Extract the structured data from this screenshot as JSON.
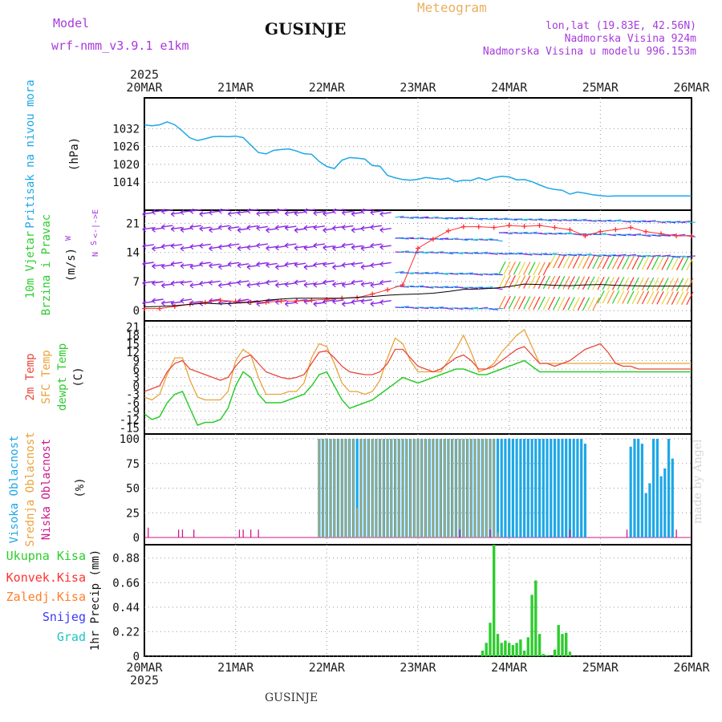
{
  "header": {
    "model_label": "Model",
    "model_name": "wrf-nmm_v3.9.1 e1km",
    "station": "GUSINJE",
    "product": "Meteogram",
    "lonlat": "lon,lat (19.83E, 42.56N)",
    "altitude": "Nadmorska Visina 924m",
    "model_altitude": "Nadmorska Visina u modelu 996.153m"
  },
  "footer": {
    "station": "GUSINJE",
    "credit": "made by Angel"
  },
  "time_axis": {
    "year_top": "2025",
    "year_bottom": "2025",
    "ticks": [
      "20MAR",
      "21MAR",
      "22MAR",
      "23MAR",
      "24MAR",
      "25MAR",
      "26MAR"
    ]
  },
  "colors": {
    "pressure": "#1ea7e6",
    "wind_speed": "#000000",
    "gust": "#ff3030",
    "temp_2m": "#e8473a",
    "temp_sfc": "#e8a33a",
    "dewpoint": "#2ecc2e",
    "cloud_high": "#1ea7e6",
    "cloud_mid": "#e8a33a",
    "cloud_low": "#cc1a8a",
    "precip_total": "#2ecc2e",
    "precip_conv": "#ff3030",
    "precip_frz": "#ff7f2a",
    "snow": "#3a3aff",
    "graupel": "#20c4c4",
    "grid": "#999999"
  },
  "chart_data": [
    {
      "type": "line",
      "panel": "pressure",
      "ylabel_lines": [
        "Pritisak na nivou mora"
      ],
      "unit": "(hPa)",
      "y_ticks": [
        "1032",
        "1026",
        "1020",
        "1014"
      ],
      "ylim": [
        1009.2,
        1034.8
      ],
      "x": [
        0,
        2,
        4,
        6,
        8,
        10,
        12,
        14,
        16,
        18,
        20,
        22,
        24,
        26,
        28,
        30,
        32,
        34,
        36,
        38,
        40,
        42,
        44,
        46,
        48,
        50,
        52,
        54,
        56,
        58,
        60,
        62,
        64,
        66,
        68,
        70,
        72,
        74,
        76,
        78,
        80,
        82,
        84,
        86,
        88,
        90,
        92,
        94,
        96,
        98,
        100,
        102,
        104,
        106,
        108,
        110,
        112,
        114,
        116,
        118,
        120,
        122,
        124,
        126,
        128,
        130,
        132,
        134,
        136,
        138,
        140,
        142,
        144
      ],
      "series": [
        {
          "values": [
            1033.3,
            1033.0,
            1033.3,
            1034.3,
            1033.3,
            1031.2,
            1028.9,
            1028.0,
            1028.6,
            1029.3,
            1029.4,
            1029.3,
            1029.5,
            1029.0,
            1026.5,
            1024.0,
            1023.5,
            1024.7,
            1025.0,
            1025.2,
            1024.5,
            1023.6,
            1023.4,
            1021.0,
            1019.3,
            1018.6,
            1021.4,
            1022.3,
            1022.1,
            1021.8,
            1019.6,
            1019.4,
            1016.3,
            1015.5,
            1014.9,
            1014.7,
            1015.0,
            1015.6,
            1015.3,
            1015.0,
            1015.4,
            1014.2,
            1014.7,
            1014.6,
            1015.5,
            1014.7,
            1015.6,
            1016.0,
            1015.8,
            1014.8,
            1014.9,
            1014.2,
            1013.1,
            1012.1,
            1011.6,
            1011.3,
            1010.0,
            1010.7,
            1010.3,
            1009.8,
            1009.5,
            1009.3,
            1009.4,
            1009.4,
            1009.4,
            1009.4,
            1009.4,
            1009.4,
            1009.4,
            1009.4,
            1009.4,
            1009.4,
            1009.4
          ]
        }
      ]
    },
    {
      "type": "line",
      "panel": "wind",
      "ylabel_lines": [
        "10m Vjetar",
        "Brzina i Pravac"
      ],
      "unit": "(m/s)",
      "direction_legend": [
        "N",
        "<-|->",
        "E",
        "W",
        "S"
      ],
      "y_ticks": [
        "21",
        "14",
        "7",
        "0"
      ],
      "ylim": [
        -1.7,
        23.6
      ],
      "x": [
        0,
        4,
        8,
        12,
        16,
        20,
        24,
        28,
        32,
        36,
        40,
        44,
        48,
        52,
        56,
        60,
        64,
        68,
        72,
        76,
        80,
        84,
        88,
        92,
        96,
        100,
        104,
        108,
        112,
        116,
        120,
        124,
        128,
        132,
        136,
        140,
        144
      ],
      "series": [
        {
          "values": [
            0.9,
            1.0,
            1.2,
            1.5,
            1.8,
            1.6,
            1.8,
            2.0,
            2.5,
            2.8,
            3.0,
            3.0,
            3.0,
            3.0,
            3.2,
            3.4,
            3.7,
            3.9,
            4.0,
            4.2,
            4.6,
            5.1,
            5.2,
            5.4,
            5.8,
            6.4,
            6.3,
            6.1,
            6.0,
            6.2,
            6.3,
            6.1,
            6.0,
            5.9,
            5.9,
            5.9,
            5.9
          ]
        },
        {
          "values": [
            0.5,
            0.5,
            1.0,
            1.5,
            2.0,
            2.5,
            2.2,
            2.0,
            2.0,
            2.3,
            2.3,
            2.5,
            2.7,
            3.0,
            3.1,
            4.0,
            5.0,
            6.2,
            15.0,
            17.2,
            19.2,
            20.2,
            20.2,
            20.0,
            20.5,
            20.3,
            20.5,
            20.0,
            19.5,
            18.0,
            19.0,
            19.5,
            20.0,
            19.0,
            18.5,
            18.0,
            18.0
          ]
        }
      ]
    },
    {
      "type": "line",
      "panel": "temperature",
      "ylabel_lines": [
        "2m Temp",
        "SFC Temp",
        "dewpt Temp"
      ],
      "unit": "(C)",
      "y_ticks": [
        "21",
        "18",
        "15",
        "12",
        "9",
        "6",
        "3",
        "0",
        "-3",
        "-6",
        "-9",
        "-12",
        "-15"
      ],
      "ylim": [
        -16,
        22
      ],
      "x": [
        0,
        2,
        4,
        6,
        8,
        10,
        12,
        14,
        16,
        18,
        20,
        22,
        24,
        26,
        28,
        30,
        32,
        34,
        36,
        38,
        40,
        42,
        44,
        46,
        48,
        50,
        52,
        54,
        56,
        58,
        60,
        62,
        64,
        66,
        68,
        70,
        72,
        74,
        76,
        78,
        80,
        82,
        84,
        86,
        88,
        90,
        92,
        94,
        96,
        98,
        100,
        102,
        104,
        106,
        108,
        110,
        112,
        114,
        116,
        118,
        120,
        122,
        124,
        126,
        128,
        130,
        132,
        134,
        136,
        138,
        140,
        142,
        144
      ],
      "series": [
        {
          "name": "2m Temp",
          "values": [
            -2,
            -1,
            0,
            5,
            8,
            9,
            6,
            5,
            4,
            3,
            2,
            3,
            7,
            10,
            11,
            8,
            5,
            4,
            3,
            2.5,
            3,
            4,
            8,
            12,
            12.5,
            10,
            7,
            5,
            4.5,
            4,
            4,
            5,
            8,
            13,
            13,
            10,
            7,
            6,
            5,
            6,
            8,
            10,
            11,
            9,
            6,
            6,
            7,
            9,
            11,
            13,
            14,
            11,
            8,
            8,
            7,
            8,
            9,
            11,
            13,
            14,
            15,
            12,
            8,
            7,
            7,
            6,
            6,
            6,
            6,
            6,
            6,
            6,
            6
          ]
        },
        {
          "name": "SFC Temp",
          "values": [
            -4,
            -5,
            -3,
            4,
            10,
            10,
            2,
            -4,
            -5,
            -5,
            -5,
            -2,
            9,
            13,
            11,
            3,
            -3,
            -3,
            -3,
            -2,
            -2,
            1,
            10,
            15,
            14,
            8,
            1,
            -2,
            -2,
            -3,
            -2,
            2,
            10,
            17,
            15,
            9,
            5,
            5,
            5,
            5,
            9,
            13,
            18,
            12,
            5,
            6,
            8,
            12,
            15,
            18,
            20,
            14,
            8,
            8,
            8,
            8,
            8,
            8,
            8,
            8,
            8,
            8,
            8,
            8,
            8,
            8,
            8,
            8,
            8,
            8,
            8,
            8,
            8
          ]
        },
        {
          "name": "dewpt Temp",
          "values": [
            -10,
            -12,
            -11,
            -6,
            -3,
            -2,
            -8,
            -14,
            -13,
            -13,
            -12,
            -8,
            0,
            5,
            3,
            -3,
            -6,
            -6,
            -6,
            -5,
            -4,
            -3,
            0,
            4,
            5,
            0,
            -5,
            -8,
            -7,
            -6,
            -5,
            -3,
            -1,
            1,
            3,
            2,
            1,
            2,
            3,
            4,
            5,
            6,
            6,
            5,
            4,
            4,
            5,
            6,
            7,
            8,
            9,
            7,
            5,
            5,
            5,
            5,
            5,
            5,
            5,
            5,
            5,
            5,
            5,
            5,
            5,
            5,
            5,
            5,
            5,
            5,
            5,
            5,
            5
          ]
        }
      ]
    },
    {
      "type": "bar",
      "panel": "cloud",
      "ylabel_lines": [
        "Visoka Oblacnost",
        "Srednja Oblacnost",
        "Niska Oblacnost"
      ],
      "unit": "(%)",
      "y_ticks": [
        "100",
        "75",
        "50",
        "25",
        "0"
      ],
      "ylim": [
        -5,
        105
      ],
      "series": [
        {
          "name": "Visoka Oblacnost",
          "x": [
            46,
            47,
            48,
            49,
            50,
            51,
            52,
            53,
            54,
            55,
            56,
            57,
            58,
            59,
            60,
            61,
            62,
            63,
            64,
            65,
            66,
            67,
            68,
            69,
            70,
            71,
            72,
            73,
            74,
            75,
            76,
            77,
            78,
            79,
            80,
            81,
            82,
            83,
            84,
            85,
            86,
            87,
            88,
            89,
            90,
            91,
            92,
            93,
            94,
            95,
            96,
            97,
            98,
            99,
            100,
            101,
            102,
            103,
            104,
            105,
            106,
            107,
            108,
            109,
            110,
            111,
            112,
            113,
            114,
            115,
            116,
            128,
            129,
            130,
            131,
            132,
            133,
            134,
            135,
            136,
            137,
            138,
            139,
            140,
            141,
            142,
            143
          ],
          "values": [
            100,
            100,
            100,
            100,
            100,
            100,
            100,
            100,
            100,
            100,
            100,
            100,
            100,
            100,
            100,
            100,
            100,
            100,
            100,
            100,
            100,
            100,
            100,
            100,
            100,
            100,
            100,
            100,
            100,
            100,
            100,
            100,
            100,
            100,
            100,
            100,
            100,
            100,
            100,
            100,
            100,
            100,
            100,
            100,
            100,
            100,
            100,
            100,
            100,
            100,
            100,
            100,
            100,
            100,
            100,
            100,
            100,
            100,
            100,
            100,
            100,
            100,
            100,
            100,
            100,
            100,
            100,
            100,
            100,
            100,
            95,
            92,
            100,
            100,
            95,
            45,
            55,
            100,
            100,
            62,
            70,
            100,
            80,
            0,
            0,
            0,
            0
          ]
        },
        {
          "name": "Srednja Oblacnost",
          "x": [
            46,
            47,
            48,
            49,
            50,
            51,
            52,
            53,
            54,
            55,
            56,
            57,
            58,
            59,
            60,
            61,
            62,
            63,
            64,
            65,
            66,
            67,
            68,
            69,
            70,
            71,
            72,
            73,
            74,
            75,
            76,
            77,
            78,
            79,
            80,
            81,
            82,
            83,
            84,
            85,
            86,
            87,
            88,
            89,
            90,
            91,
            92,
            93,
            94,
            95
          ],
          "values": [
            100,
            100,
            100,
            100,
            100,
            100,
            100,
            100,
            100,
            100,
            30,
            100,
            100,
            100,
            100,
            100,
            100,
            100,
            100,
            100,
            100,
            100,
            100,
            100,
            100,
            100,
            100,
            100,
            100,
            100,
            100,
            100,
            100,
            100,
            100,
            100,
            100,
            100,
            100,
            100,
            100,
            100,
            100,
            100,
            100,
            100,
            100,
            5,
            0,
            0
          ]
        },
        {
          "name": "Niska Oblacnost",
          "x": [
            1,
            9,
            10,
            13,
            25,
            26,
            28,
            30,
            83,
            91,
            112,
            127,
            140
          ],
          "values": [
            10,
            8,
            8,
            8,
            8,
            8,
            8,
            8,
            8,
            8,
            8,
            8,
            8
          ]
        }
      ]
    },
    {
      "type": "bar",
      "panel": "precip",
      "legend": [
        "Ukupna Kisa",
        "Konvek.Kisa",
        "Zaledj.Kisa",
        "Snijeg",
        "Grad"
      ],
      "unit": "1hr Precip (mm)",
      "y_ticks": [
        "0.88",
        "0.66",
        "0.44",
        "0.22",
        "0"
      ],
      "ylim": [
        0,
        1.0
      ],
      "x": [
        89,
        90,
        91,
        92,
        93,
        94,
        95,
        96,
        97,
        98,
        99,
        100,
        101,
        102,
        103,
        104,
        105,
        106,
        108,
        109,
        110,
        111,
        112
      ],
      "series": [
        {
          "name": "Ukupna Kisa",
          "values": [
            0.05,
            0.12,
            0.3,
            1.0,
            0.2,
            0.12,
            0.14,
            0.12,
            0.1,
            0.12,
            0.15,
            0.05,
            0.17,
            0.55,
            0.68,
            0.2,
            0.02,
            0.01,
            0.06,
            0.28,
            0.2,
            0.21,
            0.04
          ]
        }
      ]
    }
  ]
}
